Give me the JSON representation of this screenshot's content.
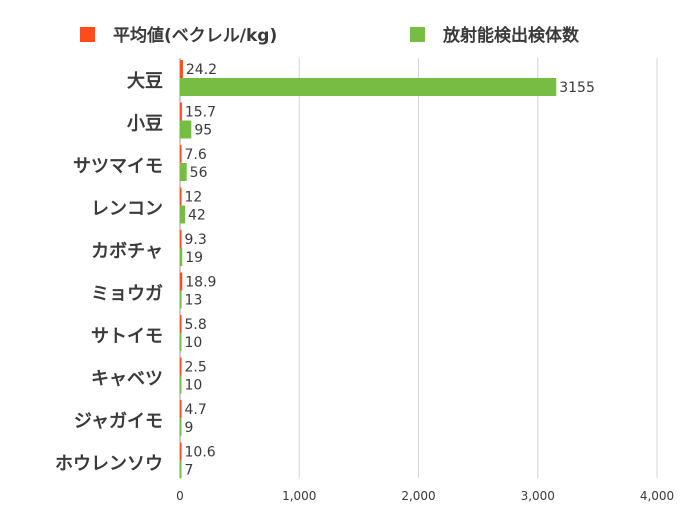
{
  "chart_data": {
    "type": "bar",
    "orientation": "horizontal",
    "categories": [
      "大豆",
      "小豆",
      "サツマイモ",
      "レンコン",
      "カボチャ",
      "ミョウガ",
      "サトイモ",
      "キャベツ",
      "ジャガイモ",
      "ホウレンソウ"
    ],
    "series": [
      {
        "name": "平均値(ベクレル/kg)",
        "color": "#ff4a1c",
        "values": [
          24.2,
          15.7,
          7.6,
          12,
          9.3,
          18.9,
          5.8,
          2.5,
          4.7,
          10.6
        ],
        "labels": [
          "24.2",
          "15.7",
          "7.6",
          "12",
          "9.3",
          "18.9",
          "5.8",
          "2.5",
          "4.7",
          "10.6"
        ]
      },
      {
        "name": "放射能検出検体数",
        "color": "#77bd44",
        "values": [
          3155,
          95,
          56,
          42,
          19,
          13,
          10,
          10,
          9,
          7
        ],
        "labels": [
          "3155",
          "95",
          "56",
          "42",
          "19",
          "13",
          "10",
          "10",
          "9",
          "7"
        ]
      }
    ],
    "xlim": [
      0,
      4000
    ],
    "xticks": [
      0,
      1000,
      2000,
      3000,
      4000
    ],
    "xtick_labels": [
      "0",
      "1,000",
      "2,000",
      "3,000",
      "4,000"
    ],
    "grid": true,
    "legend_position": "top"
  }
}
